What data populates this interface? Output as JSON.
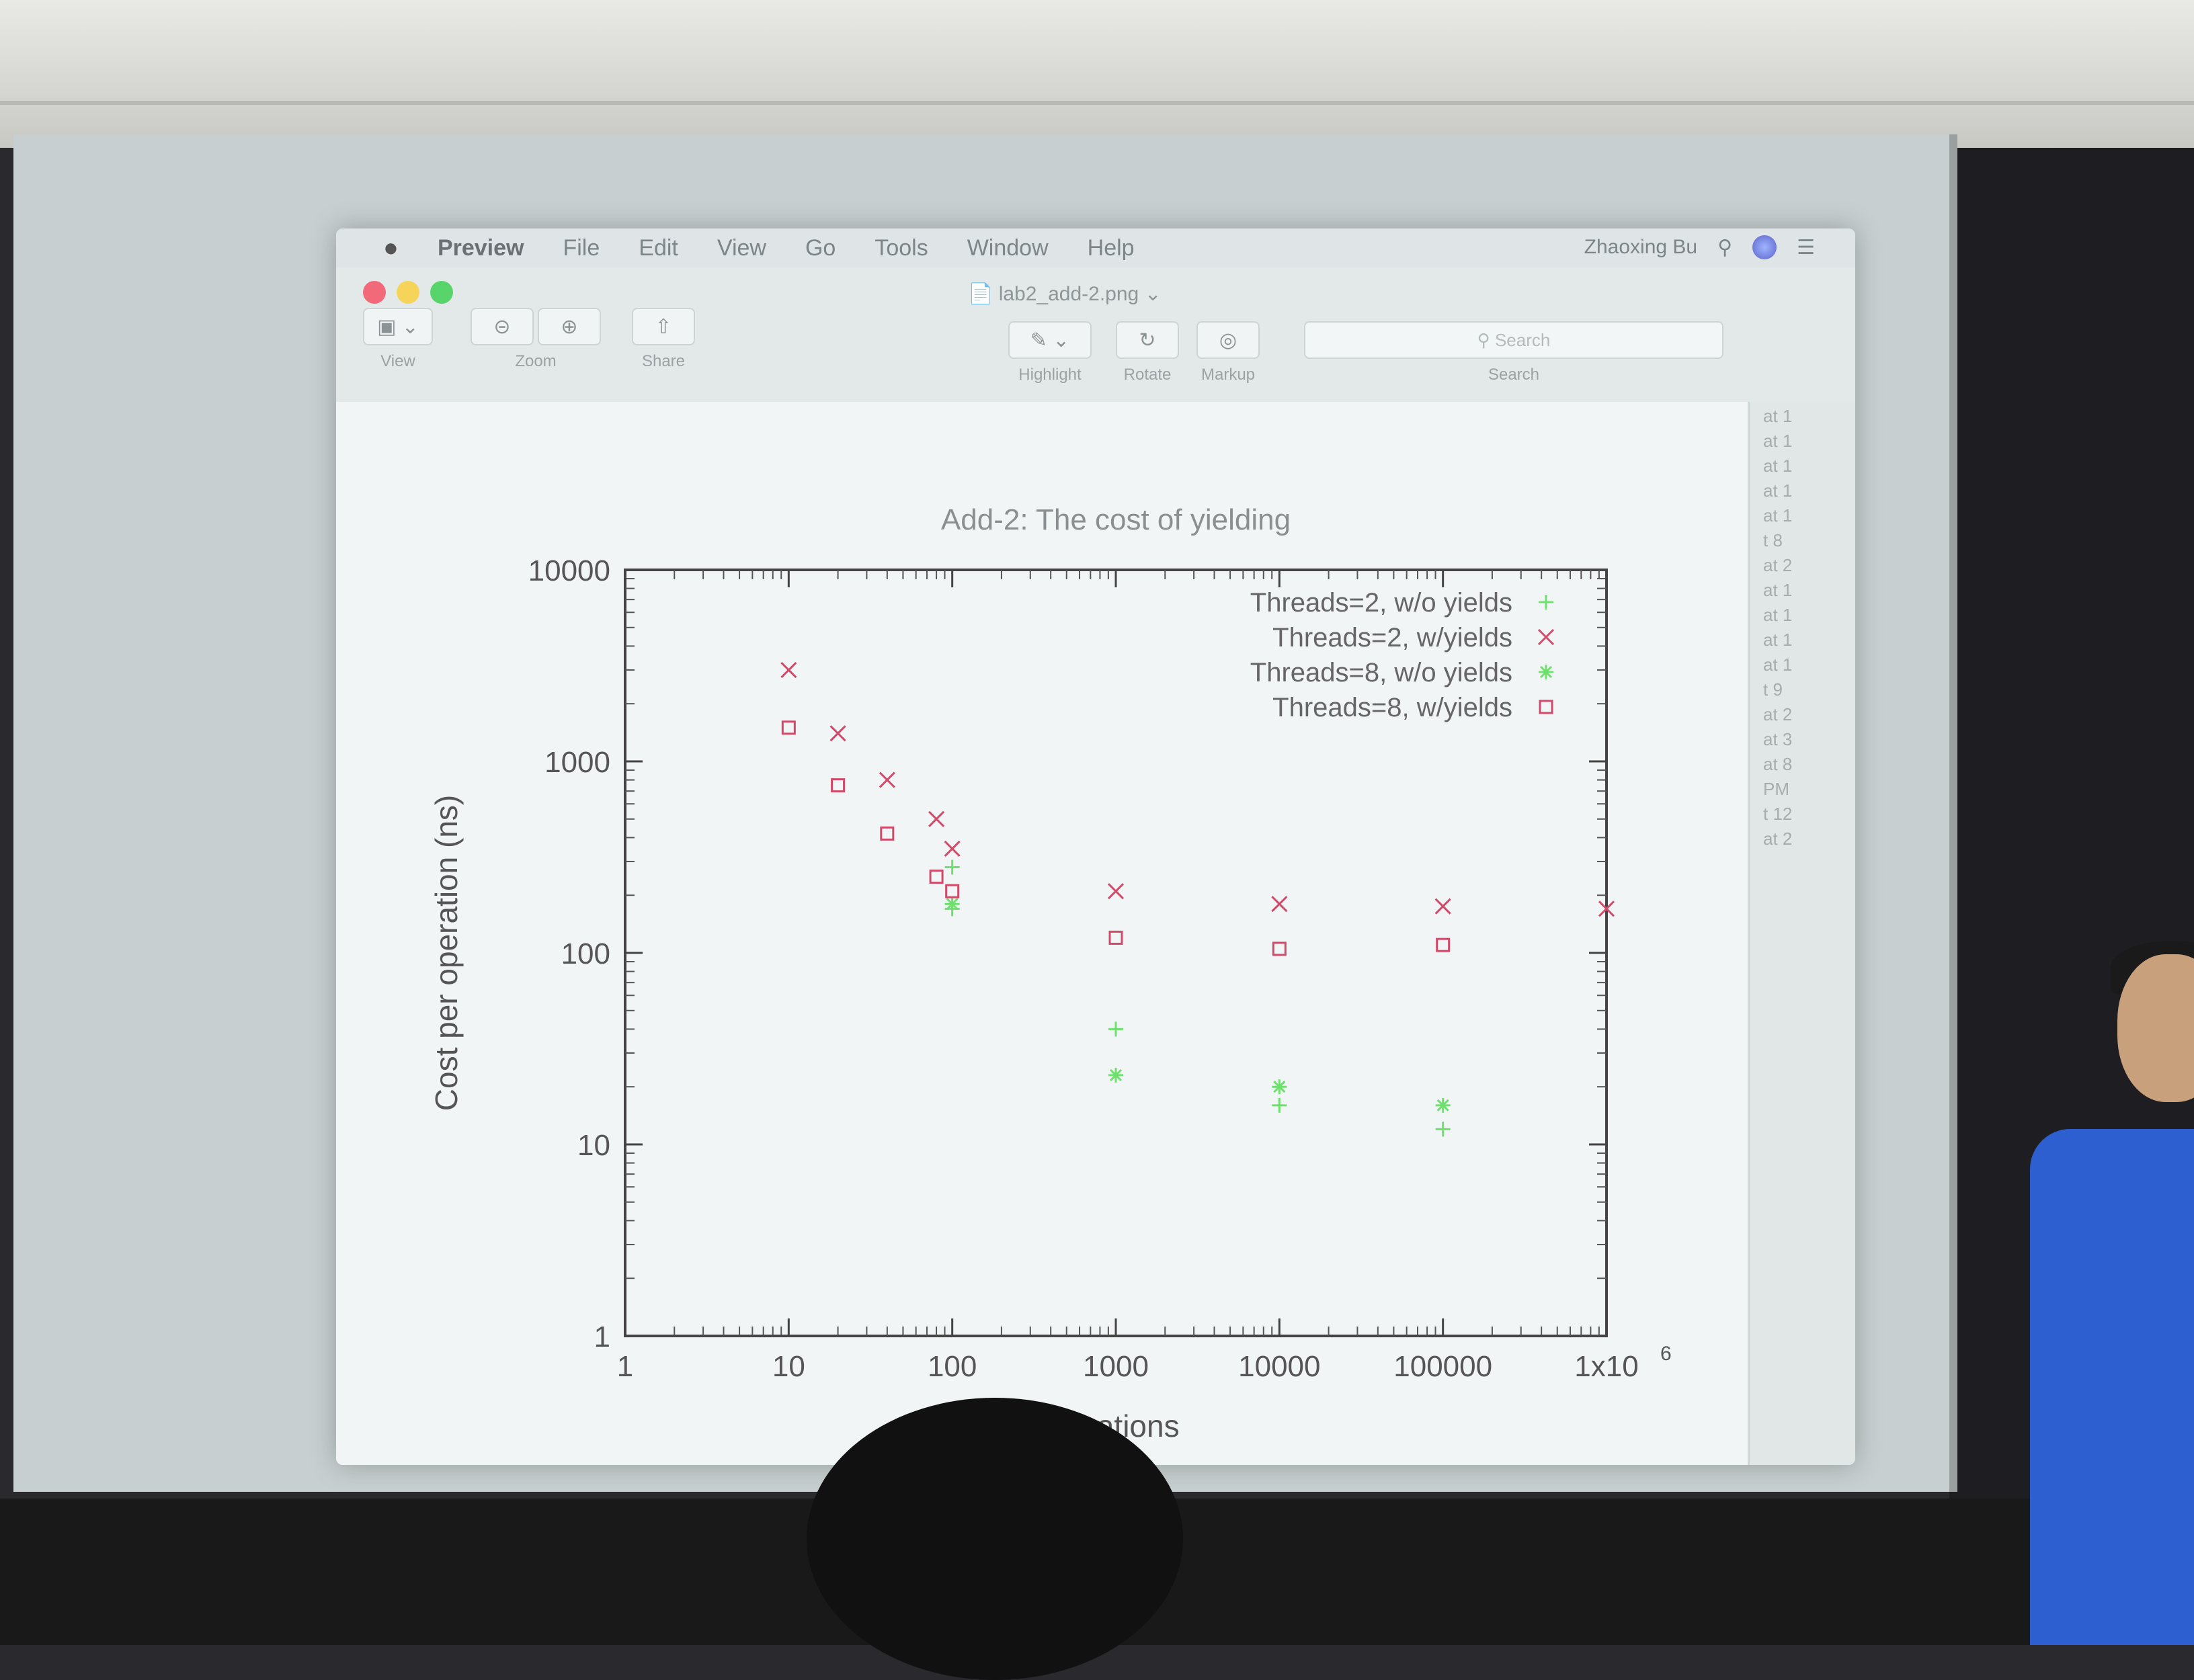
{
  "menubar": {
    "app": "Preview",
    "items": [
      "File",
      "Edit",
      "View",
      "Go",
      "Tools",
      "Window",
      "Help"
    ],
    "user": "Zhaoxing Bu"
  },
  "window": {
    "doc_title": "lab2_add-2.png",
    "toolbar": {
      "view": "View",
      "zoom": "Zoom",
      "share": "Share",
      "highlight": "Highlight",
      "rotate": "Rotate",
      "markup": "Markup",
      "search_label": "Search",
      "search_placeholder": "Search"
    }
  },
  "sidebar": {
    "items": [
      "at 1",
      "at 1",
      "at 1",
      "at 1",
      "at 1",
      "t 8",
      "at 2",
      "at 1",
      "at 1",
      "at 1",
      "at 1",
      "t 9",
      "at 2",
      "at 3",
      "at 8",
      "PM",
      "t 12",
      "at 2"
    ]
  },
  "colors": {
    "red": "#d24a6a",
    "green": "#6ee06e"
  },
  "chart_data": {
    "type": "scatter",
    "title": "Add-2: The cost of yielding",
    "xlabel": "Iterations",
    "ylabel": "Cost per operation (ns)",
    "xscale": "log",
    "yscale": "log",
    "xlim": [
      1,
      1000000
    ],
    "ylim": [
      1,
      10000
    ],
    "xticks": [
      "1",
      "10",
      "100",
      "1000",
      "10000",
      "100000",
      "1x10"
    ],
    "xtick_sup": "6",
    "yticks": [
      "1",
      "10",
      "100",
      "1000",
      "10000"
    ],
    "legend_position": "top-right",
    "series": [
      {
        "name": "Threads=2, w/o yields",
        "marker": "plus",
        "color": "#6ee06e",
        "points": [
          [
            100,
            280
          ],
          [
            100,
            170
          ],
          [
            1000,
            40
          ],
          [
            10000,
            16
          ],
          [
            100000,
            12
          ]
        ]
      },
      {
        "name": "Threads=2, w/yields",
        "marker": "x",
        "color": "#d24a6a",
        "points": [
          [
            10,
            3000
          ],
          [
            20,
            1400
          ],
          [
            40,
            800
          ],
          [
            80,
            500
          ],
          [
            100,
            350
          ],
          [
            1000,
            210
          ],
          [
            10000,
            180
          ],
          [
            100000,
            175
          ],
          [
            1000000,
            170
          ]
        ]
      },
      {
        "name": "Threads=8, w/o yields",
        "marker": "star",
        "color": "#6ee06e",
        "points": [
          [
            100,
            180
          ],
          [
            1000,
            23
          ],
          [
            10000,
            20
          ],
          [
            100000,
            16
          ]
        ]
      },
      {
        "name": "Threads=8, w/yields",
        "marker": "square",
        "color": "#d24a6a",
        "points": [
          [
            10,
            1500
          ],
          [
            20,
            750
          ],
          [
            40,
            420
          ],
          [
            80,
            250
          ],
          [
            100,
            210
          ],
          [
            1000,
            120
          ],
          [
            10000,
            105
          ],
          [
            100000,
            110
          ]
        ]
      }
    ]
  }
}
